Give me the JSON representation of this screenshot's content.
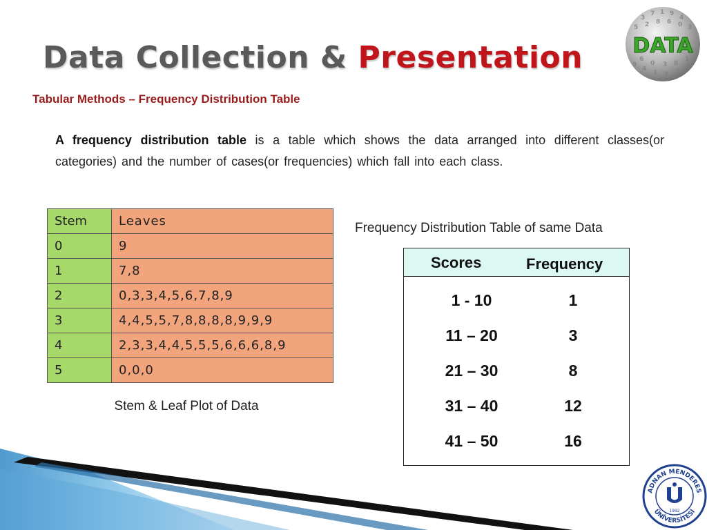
{
  "title": {
    "main": "Data Collection & ",
    "accent": "Presentation"
  },
  "logo_text": "DATA",
  "subtitle": "Tabular Methods – Frequency Distribution Table",
  "paragraph": {
    "bold": "A frequency distribution table",
    "rest": " is a table which shows the data arranged into different classes(or categories) and the number of cases(or frequencies) which fall into each class."
  },
  "stem_leaf": {
    "header": {
      "stem": "Stem",
      "leaves": "Leaves"
    },
    "rows": [
      {
        "stem": "0",
        "leaves": "9"
      },
      {
        "stem": "1",
        "leaves": "7,8"
      },
      {
        "stem": "2",
        "leaves": "0,3,3,4,5,6,7,8,9"
      },
      {
        "stem": "3",
        "leaves": "4,4,5,5,7,8,8,8,8,9,9,9"
      },
      {
        "stem": "4",
        "leaves": "2,3,3,4,4,5,5,5,6,6,6,8,9"
      },
      {
        "stem": "5",
        "leaves": "0,0,0"
      }
    ],
    "caption": "Stem & Leaf Plot of Data"
  },
  "frequency_table": {
    "caption": "Frequency Distribution Table of  same Data",
    "headers": {
      "scores": "Scores",
      "frequency": "Frequency"
    },
    "rows": [
      {
        "scores": "1 - 10",
        "frequency": "1"
      },
      {
        "scores": "11 – 20",
        "frequency": "3"
      },
      {
        "scores": "21 – 30",
        "frequency": "8"
      },
      {
        "scores": "31 – 40",
        "frequency": "12"
      },
      {
        "scores": "41 – 50",
        "frequency": "16"
      }
    ]
  },
  "seal": {
    "top_text": "ADNAN MENDERES",
    "bottom_text": "ÜNİVERSİTESİ",
    "year": "1992"
  },
  "colors": {
    "title_gray": "#5a5a5a",
    "title_red": "#c0151b",
    "subtitle_red": "#9b1c1c",
    "stem_green": "#a6d96a",
    "leaf_orange": "#f2a47c",
    "freq_header": "#dcf8f2",
    "seal_blue": "#1f3f8f"
  }
}
